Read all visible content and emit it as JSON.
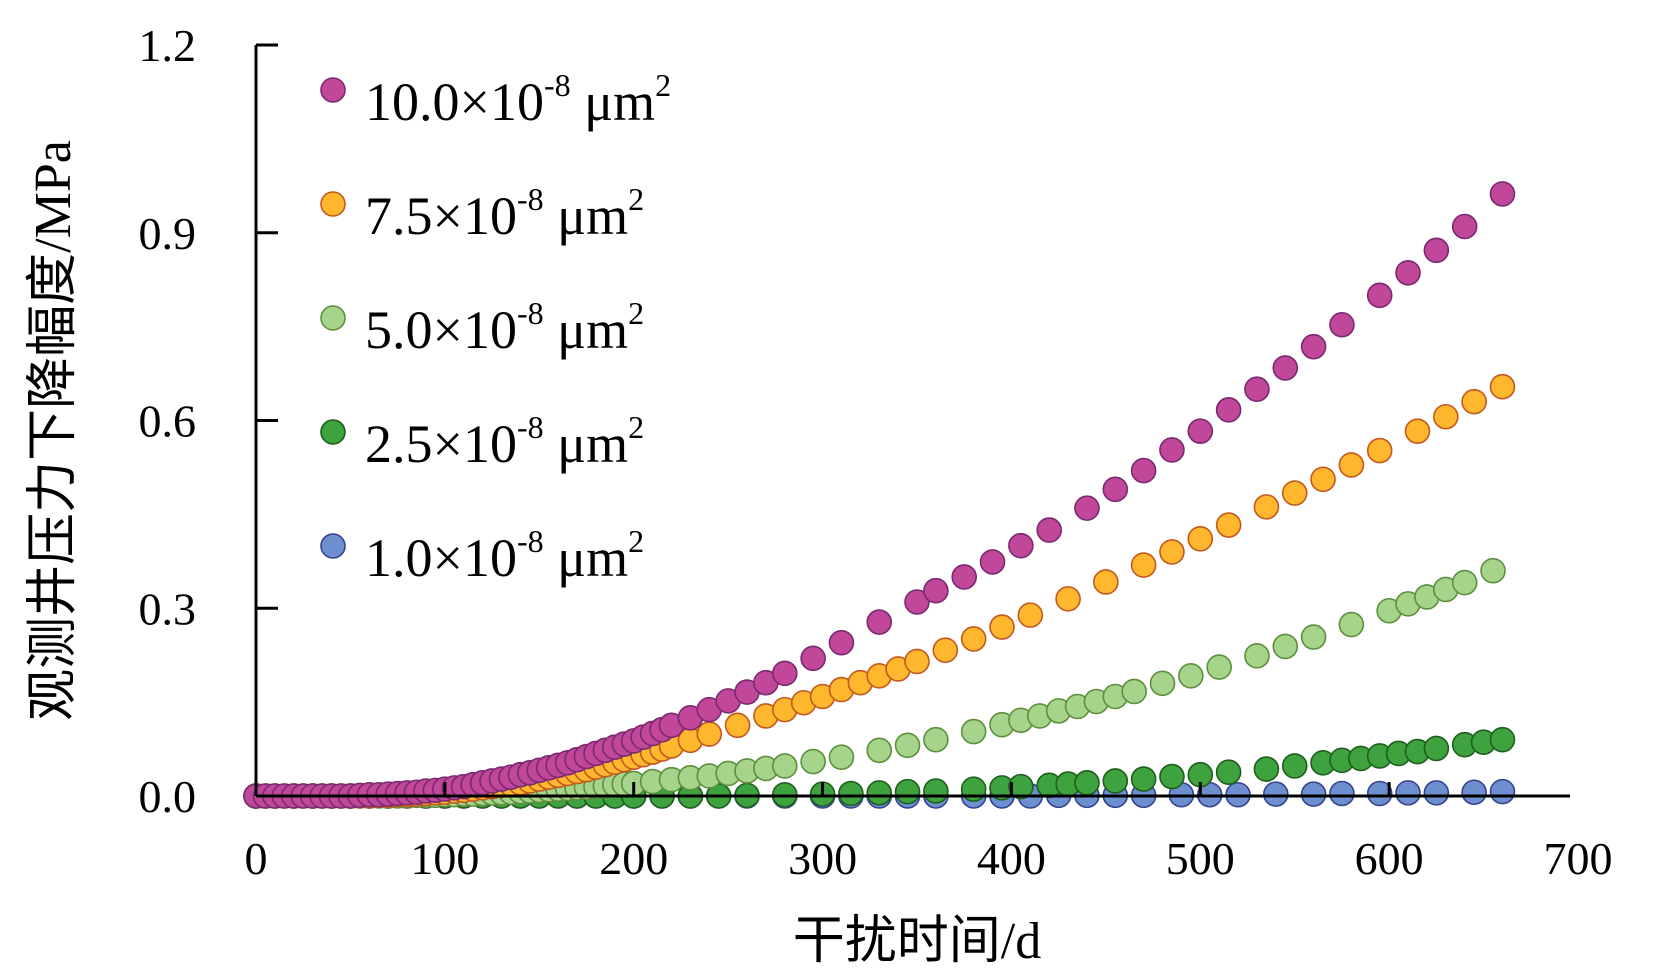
{
  "chart_data": {
    "type": "scatter",
    "title": "",
    "xlabel": "干扰时间/d",
    "ylabel": "观测井压力下降幅度/MPa",
    "xlim": [
      0,
      700
    ],
    "ylim": [
      0,
      1.2
    ],
    "xticks": [
      "0",
      "100",
      "200",
      "300",
      "400",
      "500",
      "600",
      "700"
    ],
    "yticks": [
      "0.0",
      "0.3",
      "0.6",
      "0.9",
      "1.2"
    ],
    "grid": false,
    "legend_position": "top-left",
    "series": [
      {
        "name": "10.0×10-8 μm2",
        "label_main": "10.0×10",
        "label_exp": "-8",
        "label_unit": " μm",
        "label_unit_exp": "2",
        "color": "#c0479a",
        "edge": "#7a2a70",
        "x": [
          0,
          5,
          10,
          15,
          20,
          25,
          30,
          35,
          40,
          45,
          50,
          55,
          60,
          65,
          70,
          75,
          80,
          85,
          90,
          95,
          100,
          105,
          110,
          115,
          120,
          125,
          130,
          135,
          140,
          145,
          150,
          155,
          160,
          165,
          170,
          175,
          180,
          185,
          190,
          195,
          200,
          205,
          210,
          215,
          220,
          230,
          240,
          250,
          260,
          270,
          280,
          295,
          310,
          330,
          350,
          360,
          375,
          390,
          405,
          420,
          440,
          455,
          470,
          485,
          500,
          515,
          530,
          545,
          560,
          575,
          595,
          610,
          625,
          640,
          660
        ],
        "y": [
          0,
          0,
          0,
          0,
          0,
          0,
          0,
          0,
          0,
          0,
          0,
          0.001,
          0.002,
          0.002,
          0.003,
          0.004,
          0.005,
          0.006,
          0.008,
          0.009,
          0.011,
          0.013,
          0.015,
          0.018,
          0.021,
          0.024,
          0.027,
          0.03,
          0.034,
          0.037,
          0.041,
          0.045,
          0.049,
          0.053,
          0.058,
          0.063,
          0.068,
          0.073,
          0.078,
          0.083,
          0.088,
          0.094,
          0.1,
          0.106,
          0.113,
          0.125,
          0.138,
          0.152,
          0.166,
          0.181,
          0.196,
          0.22,
          0.245,
          0.278,
          0.31,
          0.328,
          0.35,
          0.374,
          0.4,
          0.425,
          0.46,
          0.49,
          0.52,
          0.553,
          0.583,
          0.617,
          0.65,
          0.684,
          0.718,
          0.753,
          0.8,
          0.836,
          0.872,
          0.91,
          0.962
        ]
      },
      {
        "name": "7.5×10-8 μm2",
        "label_main": "7.5×10",
        "label_exp": "-8",
        "label_unit": " μm",
        "label_unit_exp": "2",
        "color": "#ffb72e",
        "edge": "#c4581e",
        "x": [
          0,
          5,
          10,
          15,
          20,
          25,
          30,
          35,
          40,
          45,
          50,
          55,
          60,
          65,
          70,
          75,
          80,
          85,
          90,
          95,
          100,
          105,
          110,
          115,
          120,
          125,
          130,
          135,
          140,
          145,
          150,
          155,
          160,
          165,
          170,
          175,
          180,
          185,
          190,
          195,
          200,
          205,
          210,
          215,
          220,
          230,
          240,
          255,
          270,
          280,
          290,
          300,
          310,
          320,
          330,
          340,
          350,
          365,
          380,
          395,
          410,
          430,
          450,
          470,
          485,
          500,
          515,
          535,
          550,
          565,
          580,
          595,
          615,
          630,
          645,
          660
        ],
        "y": [
          0,
          0,
          0,
          0,
          0,
          0,
          0,
          0,
          0,
          0,
          0,
          0,
          0,
          0.001,
          0.001,
          0.002,
          0.002,
          0.003,
          0.004,
          0.005,
          0.006,
          0.008,
          0.009,
          0.011,
          0.013,
          0.015,
          0.017,
          0.019,
          0.021,
          0.024,
          0.027,
          0.03,
          0.033,
          0.036,
          0.039,
          0.042,
          0.046,
          0.05,
          0.054,
          0.058,
          0.062,
          0.066,
          0.07,
          0.075,
          0.08,
          0.089,
          0.099,
          0.113,
          0.128,
          0.138,
          0.149,
          0.159,
          0.17,
          0.181,
          0.192,
          0.203,
          0.215,
          0.233,
          0.251,
          0.27,
          0.289,
          0.315,
          0.342,
          0.369,
          0.39,
          0.411,
          0.433,
          0.462,
          0.484,
          0.506,
          0.529,
          0.552,
          0.583,
          0.606,
          0.63,
          0.654
        ]
      },
      {
        "name": "5.0×10-8 μm2",
        "label_main": "5.0×10",
        "label_exp": "-8",
        "label_unit": " μm",
        "label_unit_exp": "2",
        "color": "#a6d48a",
        "edge": "#5e8f3e",
        "x": [
          0,
          5,
          10,
          15,
          20,
          25,
          30,
          35,
          40,
          45,
          50,
          55,
          60,
          65,
          70,
          75,
          80,
          85,
          90,
          95,
          100,
          105,
          110,
          115,
          120,
          125,
          130,
          135,
          140,
          145,
          150,
          155,
          160,
          165,
          170,
          175,
          180,
          185,
          190,
          195,
          200,
          210,
          220,
          230,
          240,
          250,
          260,
          270,
          280,
          295,
          310,
          330,
          345,
          360,
          380,
          395,
          405,
          415,
          425,
          435,
          445,
          455,
          465,
          480,
          495,
          510,
          530,
          545,
          560,
          580,
          600,
          610,
          620,
          630,
          640,
          655
        ],
        "y": [
          0,
          0,
          0,
          0,
          0,
          0,
          0,
          0,
          0,
          0,
          0,
          0,
          0,
          0,
          0,
          0,
          0,
          0.001,
          0.001,
          0.001,
          0.002,
          0.002,
          0.003,
          0.003,
          0.004,
          0.005,
          0.005,
          0.006,
          0.007,
          0.008,
          0.009,
          0.01,
          0.011,
          0.012,
          0.013,
          0.014,
          0.015,
          0.016,
          0.018,
          0.019,
          0.02,
          0.023,
          0.026,
          0.029,
          0.032,
          0.036,
          0.04,
          0.044,
          0.048,
          0.055,
          0.062,
          0.073,
          0.081,
          0.09,
          0.103,
          0.114,
          0.121,
          0.128,
          0.136,
          0.143,
          0.151,
          0.159,
          0.167,
          0.18,
          0.192,
          0.206,
          0.224,
          0.239,
          0.254,
          0.274,
          0.296,
          0.307,
          0.318,
          0.33,
          0.341,
          0.36
        ]
      },
      {
        "name": "2.5×10-8 μm2",
        "label_main": "2.5×10",
        "label_exp": "-8",
        "label_unit": " μm",
        "label_unit_exp": "2",
        "color": "#3ea33e",
        "edge": "#1e5f1e",
        "x": [
          0,
          10,
          20,
          30,
          40,
          50,
          60,
          70,
          80,
          90,
          100,
          110,
          120,
          130,
          140,
          150,
          160,
          170,
          180,
          190,
          200,
          215,
          230,
          245,
          260,
          280,
          300,
          315,
          330,
          345,
          360,
          380,
          395,
          405,
          420,
          430,
          440,
          455,
          470,
          485,
          500,
          515,
          535,
          550,
          565,
          575,
          585,
          595,
          605,
          615,
          625,
          640,
          650,
          660
        ],
        "y": [
          0,
          0,
          0,
          0,
          0,
          0,
          0,
          0,
          0,
          0,
          0,
          0,
          0,
          0,
          0,
          0,
          0,
          0,
          0,
          0,
          0,
          0,
          0,
          0,
          0.001,
          0.002,
          0.003,
          0.004,
          0.005,
          0.007,
          0.008,
          0.011,
          0.013,
          0.015,
          0.017,
          0.019,
          0.021,
          0.024,
          0.027,
          0.031,
          0.034,
          0.038,
          0.043,
          0.048,
          0.053,
          0.057,
          0.06,
          0.064,
          0.068,
          0.071,
          0.076,
          0.082,
          0.086,
          0.09
        ]
      },
      {
        "name": "1.0×10-8 μm2",
        "label_main": "1.0×10",
        "label_exp": "-8",
        "label_unit": " μm",
        "label_unit_exp": "2",
        "color": "#6e8fcf",
        "edge": "#34438f",
        "x": [
          0,
          10,
          20,
          30,
          40,
          50,
          60,
          70,
          80,
          90,
          100,
          110,
          120,
          130,
          140,
          150,
          160,
          170,
          180,
          190,
          200,
          215,
          230,
          245,
          260,
          280,
          300,
          315,
          330,
          345,
          360,
          380,
          395,
          410,
          425,
          440,
          455,
          470,
          490,
          505,
          520,
          540,
          560,
          575,
          595,
          610,
          625,
          645,
          660
        ],
        "y": [
          0,
          0,
          0,
          0,
          0,
          0,
          0,
          0,
          0,
          0,
          0,
          0,
          0,
          0,
          0,
          0,
          0,
          0,
          0,
          0,
          0,
          0,
          0,
          0,
          0,
          0,
          0,
          0,
          0,
          0,
          0,
          0,
          0,
          0,
          0.001,
          0.001,
          0.001,
          0.001,
          0.002,
          0.002,
          0.002,
          0.003,
          0.003,
          0.004,
          0.004,
          0.005,
          0.005,
          0.006,
          0.007
        ]
      }
    ]
  }
}
